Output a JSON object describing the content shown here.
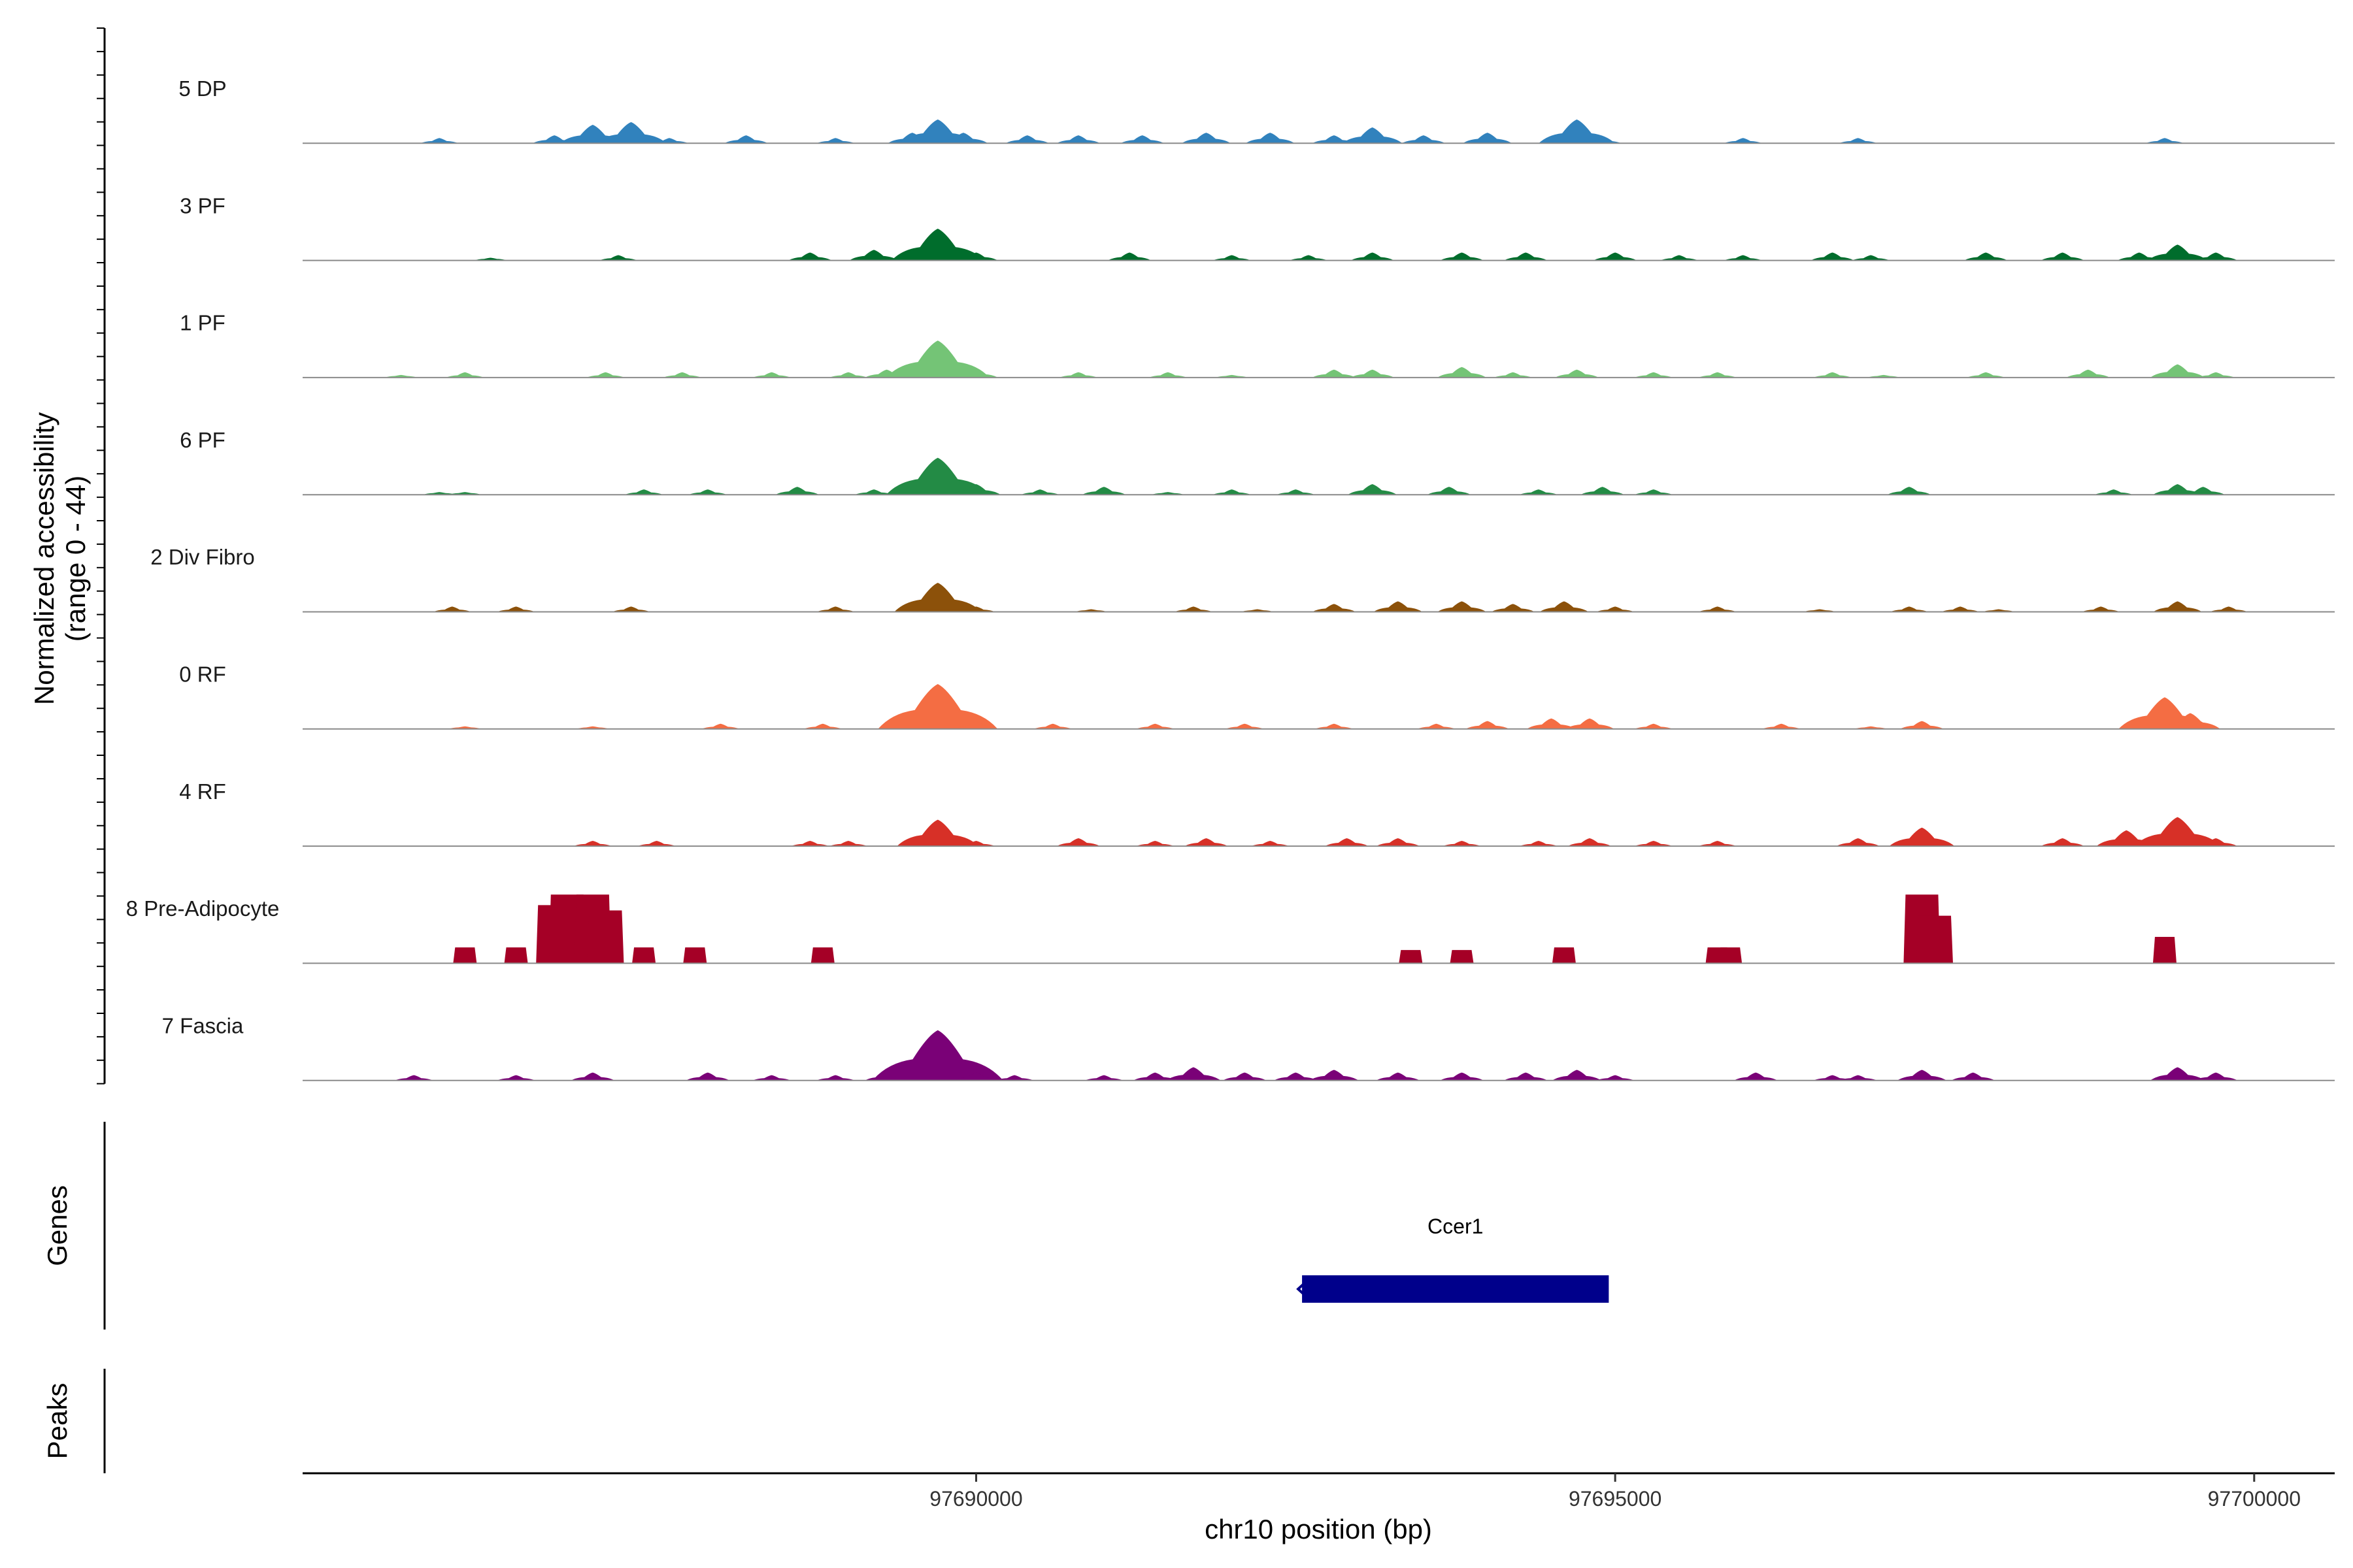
{
  "chart_data": {
    "type": "area",
    "title": "",
    "ylabel": "Normalized accessibility",
    "ylabel_range": "(range 0 - 44)",
    "ylim": [
      0,
      44
    ],
    "xlabel": "chr10 position (bp)",
    "xlim": [
      97684730,
      97700630
    ],
    "xticks": [
      97690000,
      97695000,
      97700000
    ],
    "xtick_labels": [
      "97690000",
      "97695000",
      "97700000"
    ],
    "series": [
      {
        "name": "5 DP",
        "color": "#3182BD",
        "points": [
          [
            97685800,
            2
          ],
          [
            97686700,
            3
          ],
          [
            97687000,
            7
          ],
          [
            97687300,
            8
          ],
          [
            97687600,
            2
          ],
          [
            97688200,
            3
          ],
          [
            97688900,
            2
          ],
          [
            97689500,
            4
          ],
          [
            97689700,
            9
          ],
          [
            97689900,
            4
          ],
          [
            97690400,
            3
          ],
          [
            97690800,
            3
          ],
          [
            97691300,
            3
          ],
          [
            97691800,
            4
          ],
          [
            97692300,
            4
          ],
          [
            97692800,
            3
          ],
          [
            97693100,
            6
          ],
          [
            97693500,
            3
          ],
          [
            97694000,
            4
          ],
          [
            97694700,
            9
          ],
          [
            97694900,
            2
          ],
          [
            97696000,
            2
          ],
          [
            97696900,
            2
          ],
          [
            97699300,
            2
          ]
        ]
      },
      {
        "name": "3 PF",
        "color": "#006D2C",
        "points": [
          [
            97686200,
            1
          ],
          [
            97687200,
            2
          ],
          [
            97688700,
            3
          ],
          [
            97689200,
            4
          ],
          [
            97689700,
            12
          ],
          [
            97690000,
            3
          ],
          [
            97691200,
            3
          ],
          [
            97692000,
            2
          ],
          [
            97692600,
            2
          ],
          [
            97693100,
            3
          ],
          [
            97693800,
            3
          ],
          [
            97694300,
            3
          ],
          [
            97695000,
            3
          ],
          [
            97695500,
            2
          ],
          [
            97696000,
            2
          ],
          [
            97696700,
            3
          ],
          [
            97697000,
            2
          ],
          [
            97697900,
            3
          ],
          [
            97698500,
            3
          ],
          [
            97699100,
            3
          ],
          [
            97699400,
            6
          ],
          [
            97699700,
            3
          ]
        ]
      },
      {
        "name": "1 PF",
        "color": "#74C476",
        "points": [
          [
            97685500,
            1
          ],
          [
            97686000,
            2
          ],
          [
            97687100,
            2
          ],
          [
            97687700,
            2
          ],
          [
            97688400,
            2
          ],
          [
            97689000,
            2
          ],
          [
            97689300,
            3
          ],
          [
            97689700,
            14
          ],
          [
            97690000,
            3
          ],
          [
            97690800,
            2
          ],
          [
            97691500,
            2
          ],
          [
            97692000,
            1
          ],
          [
            97692800,
            3
          ],
          [
            97693100,
            3
          ],
          [
            97693800,
            4
          ],
          [
            97694200,
            2
          ],
          [
            97694700,
            3
          ],
          [
            97695300,
            2
          ],
          [
            97695800,
            2
          ],
          [
            97696700,
            2
          ],
          [
            97697100,
            1
          ],
          [
            97697900,
            2
          ],
          [
            97698700,
            3
          ],
          [
            97699400,
            5
          ],
          [
            97699700,
            2
          ]
        ]
      },
      {
        "name": "6 PF",
        "color": "#238B45",
        "points": [
          [
            97685800,
            1
          ],
          [
            97686000,
            1
          ],
          [
            97687400,
            2
          ],
          [
            97687900,
            2
          ],
          [
            97688600,
            3
          ],
          [
            97689200,
            2
          ],
          [
            97689700,
            14
          ],
          [
            97690000,
            4
          ],
          [
            97690500,
            2
          ],
          [
            97691000,
            3
          ],
          [
            97691500,
            1
          ],
          [
            97692000,
            2
          ],
          [
            97692500,
            2
          ],
          [
            97693100,
            4
          ],
          [
            97693700,
            3
          ],
          [
            97694400,
            2
          ],
          [
            97694900,
            3
          ],
          [
            97695300,
            2
          ],
          [
            97697300,
            3
          ],
          [
            97698900,
            2
          ],
          [
            97699400,
            4
          ],
          [
            97699600,
            3
          ]
        ]
      },
      {
        "name": "2 Div Fibro",
        "color": "#8C510A",
        "points": [
          [
            97685900,
            2
          ],
          [
            97686400,
            2
          ],
          [
            97687300,
            2
          ],
          [
            97688900,
            2
          ],
          [
            97689700,
            11
          ],
          [
            97690000,
            2
          ],
          [
            97690900,
            1
          ],
          [
            97691700,
            2
          ],
          [
            97692200,
            1
          ],
          [
            97692800,
            3
          ],
          [
            97693300,
            4
          ],
          [
            97693800,
            4
          ],
          [
            97694200,
            3
          ],
          [
            97694600,
            4
          ],
          [
            97695000,
            2
          ],
          [
            97695800,
            2
          ],
          [
            97696600,
            1
          ],
          [
            97697300,
            2
          ],
          [
            97697700,
            2
          ],
          [
            97698000,
            1
          ],
          [
            97698800,
            2
          ],
          [
            97699400,
            4
          ],
          [
            97699800,
            2
          ]
        ]
      },
      {
        "name": "0 RF",
        "color": "#F46D43",
        "points": [
          [
            97686000,
            1
          ],
          [
            97687000,
            1
          ],
          [
            97688000,
            2
          ],
          [
            97688800,
            2
          ],
          [
            97689500,
            3
          ],
          [
            97689700,
            17
          ],
          [
            97690000,
            3
          ],
          [
            97690600,
            2
          ],
          [
            97691400,
            2
          ],
          [
            97692100,
            2
          ],
          [
            97692800,
            2
          ],
          [
            97693600,
            2
          ],
          [
            97694000,
            3
          ],
          [
            97694500,
            4
          ],
          [
            97694800,
            4
          ],
          [
            97695300,
            2
          ],
          [
            97696300,
            2
          ],
          [
            97697000,
            1
          ],
          [
            97697400,
            3
          ],
          [
            97699300,
            12
          ],
          [
            97699500,
            6
          ]
        ]
      },
      {
        "name": "4 RF",
        "color": "#D73027",
        "points": [
          [
            97687000,
            2
          ],
          [
            97687500,
            2
          ],
          [
            97688700,
            2
          ],
          [
            97689000,
            2
          ],
          [
            97689700,
            10
          ],
          [
            97690000,
            2
          ],
          [
            97690800,
            3
          ],
          [
            97691400,
            2
          ],
          [
            97691800,
            3
          ],
          [
            97692300,
            2
          ],
          [
            97692900,
            3
          ],
          [
            97693300,
            3
          ],
          [
            97693800,
            2
          ],
          [
            97694400,
            2
          ],
          [
            97694800,
            3
          ],
          [
            97695300,
            2
          ],
          [
            97695800,
            2
          ],
          [
            97696900,
            3
          ],
          [
            97697400,
            7
          ],
          [
            97698500,
            3
          ],
          [
            97699000,
            6
          ],
          [
            97699400,
            11
          ],
          [
            97699700,
            3
          ]
        ]
      },
      {
        "name": "8 Pre-Adipocyte",
        "color": "#A50026",
        "points": [
          [
            97686000,
            6
          ],
          [
            97686400,
            6
          ],
          [
            97686700,
            22
          ],
          [
            97686800,
            26
          ],
          [
            97687000,
            26
          ],
          [
            97687100,
            20
          ],
          [
            97687400,
            6
          ],
          [
            97687800,
            6
          ],
          [
            97688800,
            6
          ],
          [
            97693400,
            5
          ],
          [
            97693800,
            5
          ],
          [
            97694600,
            6
          ],
          [
            97695800,
            6
          ],
          [
            97695900,
            6
          ],
          [
            97697400,
            26
          ],
          [
            97697500,
            18
          ],
          [
            97699300,
            10
          ]
        ]
      },
      {
        "name": "7 Fascia",
        "color": "#7A0177",
        "points": [
          [
            97685600,
            2
          ],
          [
            97686400,
            2
          ],
          [
            97687000,
            3
          ],
          [
            97687900,
            3
          ],
          [
            97688400,
            2
          ],
          [
            97688900,
            2
          ],
          [
            97689300,
            3
          ],
          [
            97689700,
            19
          ],
          [
            97690000,
            3
          ],
          [
            97690300,
            2
          ],
          [
            97691000,
            2
          ],
          [
            97691400,
            3
          ],
          [
            97691700,
            5
          ],
          [
            97692100,
            3
          ],
          [
            97692500,
            3
          ],
          [
            97692800,
            4
          ],
          [
            97693300,
            3
          ],
          [
            97693800,
            3
          ],
          [
            97694300,
            3
          ],
          [
            97694700,
            4
          ],
          [
            97695000,
            2
          ],
          [
            97696100,
            3
          ],
          [
            97696700,
            2
          ],
          [
            97696900,
            2
          ],
          [
            97697400,
            4
          ],
          [
            97697800,
            3
          ],
          [
            97699400,
            5
          ],
          [
            97699700,
            3
          ]
        ]
      }
    ],
    "genes_label": "Genes",
    "genes": [
      {
        "name": "Ccer1",
        "start": 97692550,
        "end": 97694950,
        "strand": "-"
      }
    ],
    "peaks_label": "Peaks",
    "peaks": []
  }
}
